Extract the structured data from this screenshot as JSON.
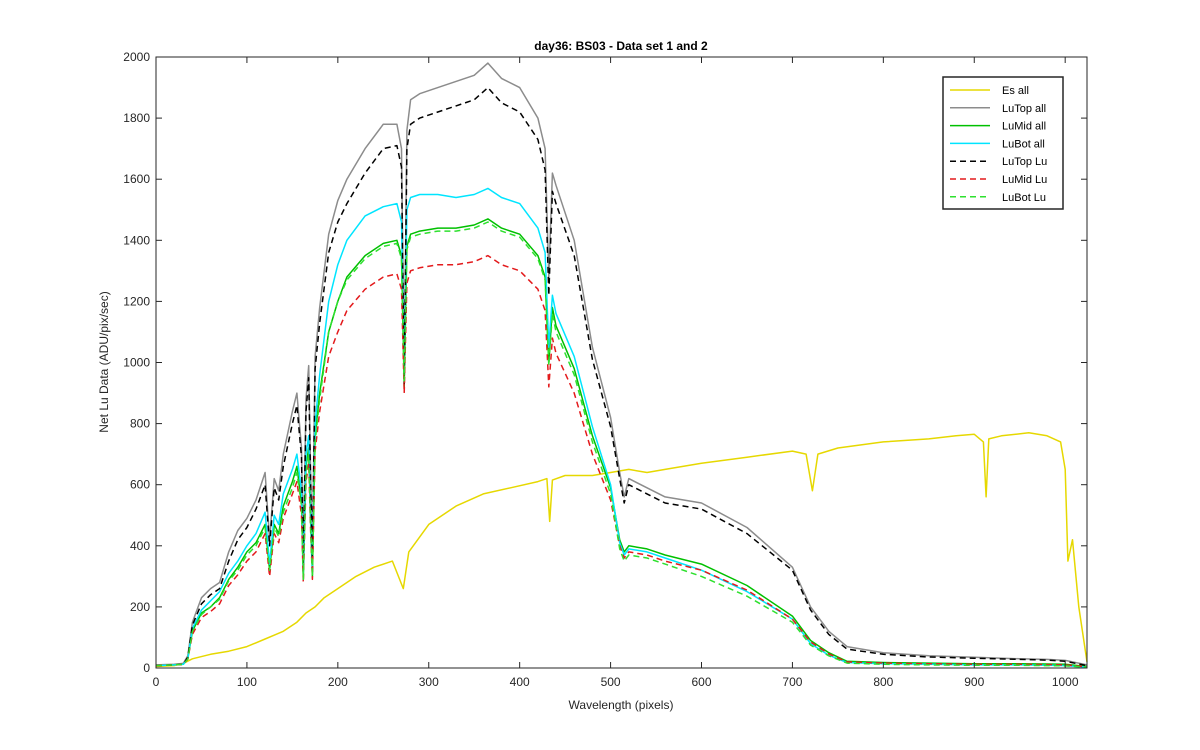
{
  "chart_data": {
    "type": "line",
    "title": "day36: BS03 - Data set 1 and 2",
    "xlabel": "Wavelength (pixels)",
    "ylabel": "Net Lu Data (ADU/pix/sec)",
    "xlim": [
      0,
      1024
    ],
    "ylim": [
      0,
      2000
    ],
    "xticks": [
      0,
      100,
      200,
      300,
      400,
      500,
      600,
      700,
      800,
      900,
      1000
    ],
    "yticks": [
      0,
      200,
      400,
      600,
      800,
      1000,
      1200,
      1400,
      1600,
      1800,
      2000
    ],
    "grid": false,
    "legend_position": "top-right",
    "series": [
      {
        "name": "Es  all",
        "color": "#e6d800",
        "style": "solid",
        "x": [
          0,
          20,
          30,
          40,
          60,
          80,
          100,
          120,
          140,
          155,
          165,
          175,
          185,
          200,
          220,
          240,
          260,
          272,
          278,
          300,
          330,
          360,
          390,
          420,
          430,
          433,
          436,
          450,
          480,
          500,
          520,
          540,
          560,
          600,
          650,
          700,
          715,
          722,
          728,
          750,
          800,
          850,
          880,
          900,
          910,
          913,
          916,
          930,
          960,
          980,
          995,
          1000,
          1003,
          1008,
          1015,
          1024
        ],
        "y": [
          5,
          8,
          15,
          30,
          45,
          55,
          70,
          95,
          120,
          150,
          180,
          200,
          230,
          260,
          300,
          330,
          350,
          260,
          380,
          470,
          530,
          570,
          590,
          610,
          620,
          480,
          615,
          630,
          630,
          640,
          650,
          640,
          650,
          670,
          690,
          710,
          700,
          580,
          700,
          720,
          740,
          750,
          760,
          765,
          740,
          560,
          750,
          760,
          770,
          760,
          740,
          650,
          350,
          420,
          200,
          20
        ]
      },
      {
        "name": "LuTop  all",
        "color": "#8c8c8c",
        "style": "solid",
        "x": [
          0,
          20,
          30,
          35,
          40,
          50,
          60,
          70,
          80,
          90,
          100,
          110,
          120,
          125,
          130,
          135,
          140,
          150,
          155,
          160,
          162,
          165,
          168,
          170,
          172,
          175,
          180,
          190,
          200,
          210,
          230,
          250,
          265,
          270,
          273,
          276,
          280,
          290,
          310,
          330,
          350,
          365,
          380,
          400,
          420,
          428,
          432,
          436,
          440,
          460,
          480,
          500,
          510,
          515,
          520,
          540,
          560,
          600,
          650,
          700,
          720,
          740,
          760,
          800,
          850,
          900,
          950,
          980,
          1000,
          1024
        ],
        "y": [
          10,
          12,
          15,
          40,
          150,
          230,
          260,
          280,
          380,
          450,
          490,
          550,
          640,
          420,
          620,
          580,
          700,
          840,
          900,
          720,
          360,
          880,
          990,
          640,
          380,
          1020,
          1180,
          1420,
          1530,
          1600,
          1700,
          1780,
          1780,
          1700,
          960,
          1760,
          1860,
          1880,
          1900,
          1920,
          1940,
          1980,
          1930,
          1900,
          1800,
          1700,
          1280,
          1620,
          1580,
          1400,
          1050,
          820,
          640,
          560,
          620,
          590,
          560,
          540,
          460,
          330,
          200,
          120,
          70,
          50,
          40,
          35,
          30,
          28,
          25,
          10
        ]
      },
      {
        "name": "LuMid  all",
        "color": "#00c000",
        "style": "solid",
        "x": [
          0,
          20,
          30,
          35,
          40,
          50,
          60,
          70,
          80,
          90,
          100,
          110,
          120,
          125,
          130,
          135,
          140,
          150,
          155,
          160,
          162,
          165,
          168,
          170,
          172,
          175,
          180,
          190,
          200,
          210,
          230,
          250,
          265,
          270,
          273,
          276,
          280,
          290,
          310,
          330,
          350,
          365,
          380,
          400,
          420,
          428,
          432,
          436,
          440,
          460,
          480,
          500,
          510,
          515,
          520,
          540,
          560,
          600,
          650,
          700,
          720,
          740,
          760,
          800,
          850,
          900,
          950,
          980,
          1000,
          1024
        ],
        "y": [
          8,
          10,
          12,
          30,
          120,
          180,
          200,
          230,
          290,
          330,
          380,
          410,
          470,
          320,
          470,
          440,
          530,
          610,
          660,
          540,
          290,
          660,
          720,
          480,
          300,
          760,
          900,
          1100,
          1200,
          1280,
          1350,
          1390,
          1400,
          1350,
          920,
          1380,
          1420,
          1430,
          1440,
          1440,
          1450,
          1470,
          1440,
          1420,
          1350,
          1280,
          1000,
          1180,
          1120,
          980,
          760,
          590,
          420,
          380,
          400,
          390,
          370,
          340,
          270,
          170,
          90,
          50,
          22,
          18,
          16,
          14,
          14,
          13,
          12,
          5
        ]
      },
      {
        "name": "LuBot  all",
        "color": "#00e5ff",
        "style": "solid",
        "x": [
          0,
          20,
          30,
          35,
          40,
          50,
          60,
          70,
          80,
          90,
          100,
          110,
          120,
          125,
          130,
          135,
          140,
          150,
          155,
          160,
          162,
          165,
          168,
          170,
          172,
          175,
          180,
          190,
          200,
          210,
          230,
          250,
          265,
          270,
          273,
          276,
          280,
          290,
          310,
          330,
          350,
          365,
          380,
          400,
          420,
          428,
          432,
          436,
          440,
          460,
          480,
          500,
          510,
          515,
          520,
          540,
          560,
          600,
          650,
          700,
          720,
          740,
          760,
          800,
          850,
          900,
          950,
          980,
          1000,
          1024
        ],
        "y": [
          8,
          10,
          12,
          30,
          130,
          190,
          220,
          250,
          310,
          350,
          400,
          440,
          510,
          340,
          500,
          470,
          570,
          650,
          700,
          580,
          310,
          700,
          760,
          510,
          320,
          800,
          960,
          1200,
          1320,
          1400,
          1480,
          1510,
          1520,
          1460,
          960,
          1500,
          1540,
          1550,
          1550,
          1540,
          1550,
          1570,
          1540,
          1520,
          1440,
          1360,
          1050,
          1220,
          1160,
          1020,
          790,
          600,
          410,
          370,
          390,
          380,
          360,
          320,
          250,
          160,
          80,
          42,
          18,
          14,
          12,
          10,
          10,
          9,
          8,
          3
        ]
      },
      {
        "name": "LuTop  Lu",
        "color": "#000000",
        "style": "dashed",
        "x": [
          0,
          20,
          30,
          35,
          40,
          50,
          60,
          70,
          80,
          90,
          100,
          110,
          120,
          125,
          130,
          135,
          140,
          150,
          155,
          160,
          162,
          165,
          168,
          170,
          172,
          175,
          180,
          190,
          200,
          210,
          230,
          250,
          265,
          270,
          273,
          276,
          280,
          290,
          310,
          330,
          350,
          365,
          380,
          400,
          420,
          428,
          432,
          436,
          440,
          460,
          480,
          500,
          510,
          515,
          520,
          540,
          560,
          600,
          650,
          700,
          720,
          740,
          760,
          800,
          850,
          900,
          950,
          980,
          1000,
          1024
        ],
        "y": [
          8,
          10,
          12,
          35,
          140,
          210,
          240,
          260,
          350,
          420,
          460,
          520,
          600,
          400,
          590,
          550,
          660,
          800,
          860,
          690,
          340,
          840,
          950,
          610,
          360,
          980,
          1130,
          1360,
          1460,
          1520,
          1620,
          1700,
          1710,
          1640,
          930,
          1700,
          1780,
          1800,
          1820,
          1840,
          1860,
          1900,
          1850,
          1820,
          1730,
          1630,
          1220,
          1560,
          1520,
          1350,
          1010,
          790,
          620,
          540,
          600,
          570,
          540,
          520,
          440,
          320,
          190,
          110,
          62,
          45,
          36,
          32,
          28,
          26,
          22,
          8
        ]
      },
      {
        "name": "LuMid  Lu",
        "color": "#e31a1c",
        "style": "dashed",
        "x": [
          0,
          20,
          30,
          35,
          40,
          50,
          60,
          70,
          80,
          90,
          100,
          110,
          120,
          125,
          130,
          135,
          140,
          150,
          155,
          160,
          162,
          165,
          168,
          170,
          172,
          175,
          180,
          190,
          200,
          210,
          230,
          250,
          265,
          270,
          273,
          276,
          280,
          290,
          310,
          330,
          350,
          365,
          380,
          400,
          420,
          428,
          432,
          436,
          440,
          460,
          480,
          500,
          510,
          515,
          520,
          540,
          560,
          600,
          650,
          700,
          720,
          740,
          760,
          800,
          850,
          900,
          950,
          980,
          1000,
          1024
        ],
        "y": [
          8,
          10,
          12,
          28,
          110,
          165,
          185,
          210,
          270,
          305,
          350,
          380,
          440,
          300,
          440,
          410,
          490,
          570,
          610,
          500,
          280,
          610,
          670,
          450,
          290,
          710,
          840,
          1020,
          1100,
          1170,
          1240,
          1280,
          1290,
          1240,
          900,
          1260,
          1300,
          1310,
          1320,
          1320,
          1330,
          1350,
          1320,
          1300,
          1240,
          1170,
          920,
          1080,
          1030,
          900,
          700,
          550,
          400,
          360,
          380,
          370,
          350,
          320,
          255,
          160,
          85,
          46,
          20,
          16,
          14,
          12,
          12,
          11,
          10,
          4
        ]
      },
      {
        "name": "LuBot  Lu",
        "color": "#2ee02e",
        "style": "dashed",
        "x": [
          0,
          20,
          30,
          35,
          40,
          50,
          60,
          70,
          80,
          90,
          100,
          110,
          120,
          125,
          130,
          135,
          140,
          150,
          155,
          160,
          162,
          165,
          168,
          170,
          172,
          175,
          180,
          190,
          200,
          210,
          230,
          250,
          265,
          270,
          273,
          276,
          280,
          290,
          310,
          330,
          350,
          365,
          380,
          400,
          420,
          428,
          432,
          436,
          440,
          460,
          480,
          500,
          510,
          515,
          520,
          540,
          560,
          600,
          650,
          700,
          720,
          740,
          760,
          800,
          850,
          900,
          950,
          980,
          1000,
          1024
        ],
        "y": [
          8,
          10,
          12,
          29,
          120,
          175,
          200,
          225,
          285,
          320,
          370,
          400,
          460,
          320,
          460,
          430,
          510,
          590,
          640,
          530,
          290,
          640,
          700,
          470,
          300,
          740,
          880,
          1100,
          1200,
          1270,
          1340,
          1380,
          1390,
          1340,
          940,
          1370,
          1410,
          1420,
          1430,
          1430,
          1440,
          1460,
          1430,
          1410,
          1340,
          1270,
          990,
          1160,
          1100,
          960,
          740,
          570,
          390,
          350,
          370,
          360,
          340,
          300,
          235,
          150,
          75,
          40,
          16,
          12,
          10,
          9,
          9,
          8,
          7,
          3
        ]
      }
    ]
  }
}
